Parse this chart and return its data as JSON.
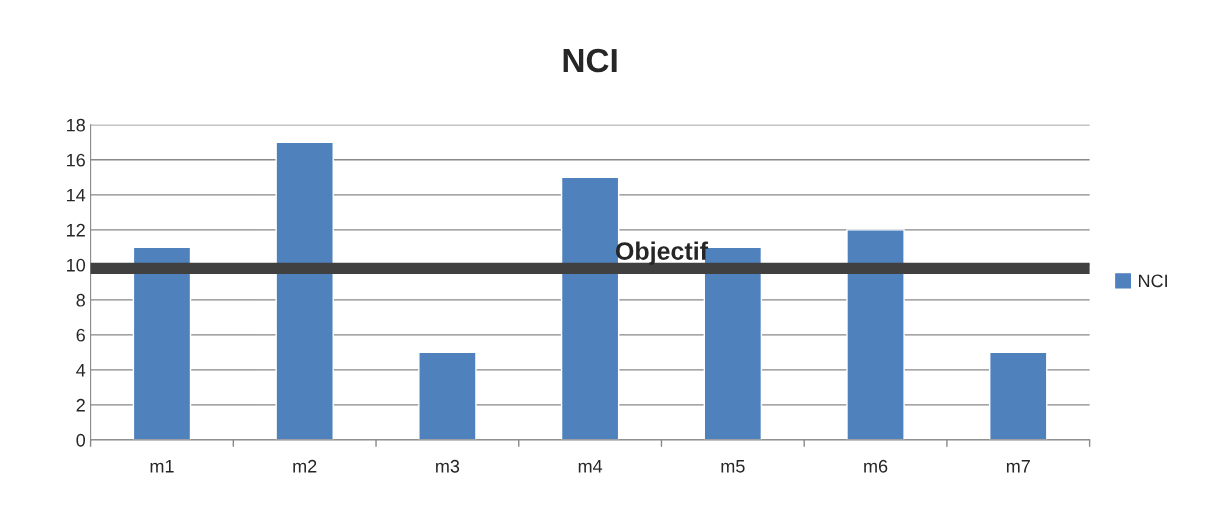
{
  "chart_data": {
    "type": "bar",
    "title": "NCI",
    "categories": [
      "m1",
      "m2",
      "m3",
      "m4",
      "m5",
      "m6",
      "m7"
    ],
    "series": [
      {
        "name": "NCI",
        "color": "#4f81bd",
        "values": [
          11,
          17,
          5,
          15,
          11,
          12,
          5
        ]
      }
    ],
    "ylim": [
      0,
      18
    ],
    "yticks": [
      0,
      2,
      4,
      6,
      8,
      10,
      12,
      14,
      16,
      18
    ],
    "ref_lines": [
      {
        "axis": "y",
        "value": 9.8,
        "label": "Objectif",
        "color": "#404040"
      }
    ],
    "grid": "y",
    "legend": "right"
  }
}
